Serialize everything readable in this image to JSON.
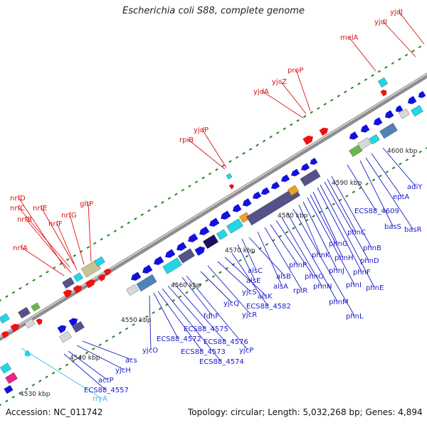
{
  "header": {
    "title": "Escherichia coli S88, complete genome"
  },
  "footer": {
    "accession": "Accession: NC_011742",
    "summary": "Topology: circular; Length: 5,032,268 bp; Genes: 4,894"
  },
  "colors": {
    "backbone": "#8a8a8a",
    "label_blue": "#1a1acc",
    "label_red": "#dd1111",
    "label_cyan": "#33bbee",
    "gene_blue": "#1111dd",
    "gene_red": "#ee1111",
    "gene_purple": "#55528a",
    "gene_cyan": "#22d6e6",
    "gene_steelblue": "#4f82b8",
    "tick_green": "#228822"
  },
  "axis": {
    "ticks": [
      "4530 kbp",
      "4540 kbp",
      "4550 kbp",
      "4560 kbp",
      "4570 kbp",
      "4580 kbp",
      "4590 kbp",
      "4600 kbp"
    ]
  },
  "labels": {
    "red": [
      "nrfD",
      "nrfC",
      "nrfE",
      "nrfB",
      "nrfF",
      "nrfG",
      "gltP",
      "nrfA",
      "rpiB",
      "yjdP",
      "yjdA",
      "yjcZ",
      "proP",
      "melA",
      "yjdI",
      "yjdJ"
    ],
    "blue": [
      "acs",
      "yjcH",
      "actP",
      "ECS88_4557",
      "yjcO",
      "ECS88_4572",
      "ECS88_4573",
      "ECS88_4574",
      "ECS88_4575",
      "ECS88_4576",
      "fdhF",
      "yjcP",
      "yjcQ",
      "yjcR",
      "yjcS",
      "alsK",
      "ECS88_4582",
      "alsE",
      "alsC",
      "alsB",
      "alsA",
      "rpiR",
      "phnP",
      "phnO",
      "phnN",
      "phnM",
      "phnL",
      "phnK",
      "phnJ",
      "phnI",
      "phnH",
      "phnG",
      "phnF",
      "phnE",
      "phnD",
      "phnC",
      "phnB",
      "ECS88_4609",
      "basS",
      "basR",
      "eptA",
      "adiY"
    ],
    "cyan": [
      "rryA"
    ]
  }
}
